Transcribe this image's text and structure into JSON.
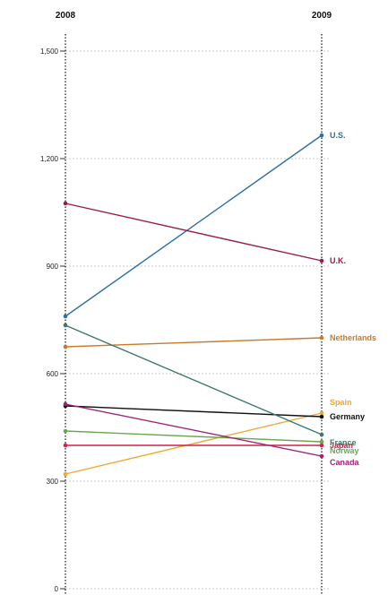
{
  "chart_data": {
    "type": "line",
    "x": [
      "2008",
      "2009"
    ],
    "ylim": [
      0,
      1500
    ],
    "yticks": [
      "0",
      "300",
      "600",
      "900",
      "1,200",
      "1,500"
    ],
    "grid": true,
    "series": [
      {
        "name": "U.S.",
        "values": [
          760,
          1265
        ],
        "color": "#2e6fa5"
      },
      {
        "name": "U.K.",
        "values": [
          1075,
          915
        ],
        "color": "#9b1c44"
      },
      {
        "name": "Netherlands",
        "values": [
          675,
          700
        ],
        "color": "#c97a2b"
      },
      {
        "name": "Spain",
        "values": [
          320,
          490
        ],
        "color": "#f0a830"
      },
      {
        "name": "Germany",
        "values": [
          510,
          480
        ],
        "color": "#111111"
      },
      {
        "name": "France",
        "values": [
          735,
          430
        ],
        "color": "#3b7a6b"
      },
      {
        "name": "Japan",
        "values": [
          400,
          400
        ],
        "color": "#d0204b"
      },
      {
        "name": "Norway",
        "values": [
          440,
          410
        ],
        "color": "#6aa84f"
      },
      {
        "name": "Canada",
        "values": [
          515,
          370
        ],
        "color": "#a0227a"
      }
    ]
  }
}
